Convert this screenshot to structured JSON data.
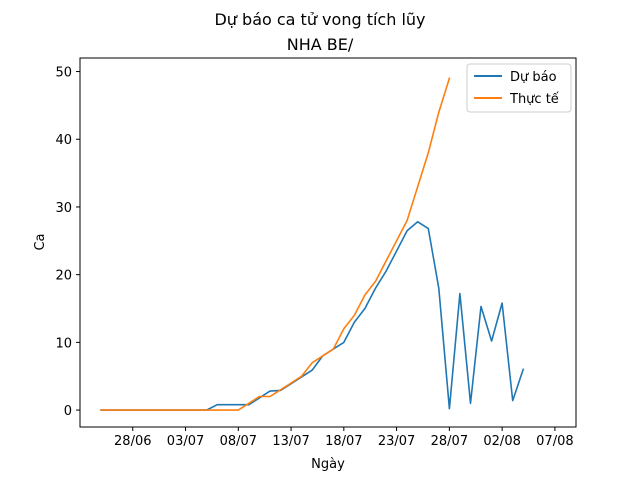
{
  "chart_data": {
    "type": "line",
    "title": "Dự báo ca tử vong tích lũy",
    "subtitle": "NHA BE/",
    "xlabel": "Ngày",
    "ylabel": "Ca",
    "x_axis": {
      "type": "date",
      "year": 2021,
      "range": [
        "2021-06-23",
        "2021-08-09"
      ],
      "ticks": [
        {
          "date": "2021-06-28",
          "label": "28/06"
        },
        {
          "date": "2021-07-03",
          "label": "03/07"
        },
        {
          "date": "2021-07-08",
          "label": "08/07"
        },
        {
          "date": "2021-07-13",
          "label": "13/07"
        },
        {
          "date": "2021-07-18",
          "label": "18/07"
        },
        {
          "date": "2021-07-23",
          "label": "23/07"
        },
        {
          "date": "2021-07-28",
          "label": "28/07"
        },
        {
          "date": "2021-08-02",
          "label": "02/08"
        },
        {
          "date": "2021-08-07",
          "label": "07/08"
        }
      ]
    },
    "y_axis": {
      "range": [
        -2.5,
        52
      ],
      "ticks": [
        0,
        10,
        20,
        30,
        40,
        50
      ]
    },
    "grid": false,
    "legend": {
      "placement": "top-right"
    },
    "series": [
      {
        "name": "Dự báo",
        "color": "#1f77b4",
        "points": [
          [
            "2021-06-25",
            0
          ],
          [
            "2021-06-26",
            0
          ],
          [
            "2021-06-27",
            0
          ],
          [
            "2021-06-28",
            0
          ],
          [
            "2021-06-29",
            0
          ],
          [
            "2021-06-30",
            0
          ],
          [
            "2021-07-01",
            0
          ],
          [
            "2021-07-02",
            0
          ],
          [
            "2021-07-03",
            0
          ],
          [
            "2021-07-04",
            0
          ],
          [
            "2021-07-05",
            0
          ],
          [
            "2021-07-06",
            0.8
          ],
          [
            "2021-07-07",
            0.8
          ],
          [
            "2021-07-08",
            0.8
          ],
          [
            "2021-07-09",
            0.8
          ],
          [
            "2021-07-10",
            1.8
          ],
          [
            "2021-07-11",
            2.8
          ],
          [
            "2021-07-12",
            2.9
          ],
          [
            "2021-07-13",
            3.9
          ],
          [
            "2021-07-14",
            4.9
          ],
          [
            "2021-07-15",
            5.9
          ],
          [
            "2021-07-16",
            8.0
          ],
          [
            "2021-07-17",
            9.0
          ],
          [
            "2021-07-18",
            10.0
          ],
          [
            "2021-07-19",
            13.0
          ],
          [
            "2021-07-20",
            15.0
          ],
          [
            "2021-07-21",
            18.0
          ],
          [
            "2021-07-22",
            20.5
          ],
          [
            "2021-07-23",
            23.5
          ],
          [
            "2021-07-24",
            26.5
          ],
          [
            "2021-07-25",
            27.8
          ],
          [
            "2021-07-26",
            26.8
          ],
          [
            "2021-07-27",
            18.0
          ],
          [
            "2021-07-28",
            0.2
          ],
          [
            "2021-07-29",
            17.2
          ],
          [
            "2021-07-30",
            1.0
          ],
          [
            "2021-07-31",
            15.3
          ],
          [
            "2021-08-01",
            10.2
          ],
          [
            "2021-08-02",
            15.8
          ],
          [
            "2021-08-03",
            1.4
          ],
          [
            "2021-08-04",
            6.0
          ]
        ]
      },
      {
        "name": "Thực tế",
        "color": "#ff7f0e",
        "points": [
          [
            "2021-06-25",
            0
          ],
          [
            "2021-06-26",
            0
          ],
          [
            "2021-06-27",
            0
          ],
          [
            "2021-06-28",
            0
          ],
          [
            "2021-06-29",
            0
          ],
          [
            "2021-06-30",
            0
          ],
          [
            "2021-07-01",
            0
          ],
          [
            "2021-07-02",
            0
          ],
          [
            "2021-07-03",
            0
          ],
          [
            "2021-07-04",
            0
          ],
          [
            "2021-07-05",
            0
          ],
          [
            "2021-07-06",
            0
          ],
          [
            "2021-07-07",
            0
          ],
          [
            "2021-07-08",
            0
          ],
          [
            "2021-07-09",
            1.0
          ],
          [
            "2021-07-10",
            2.0
          ],
          [
            "2021-07-11",
            2.0
          ],
          [
            "2021-07-12",
            3.0
          ],
          [
            "2021-07-13",
            4.0
          ],
          [
            "2021-07-14",
            5.0
          ],
          [
            "2021-07-15",
            7.0
          ],
          [
            "2021-07-16",
            8.0
          ],
          [
            "2021-07-17",
            9.0
          ],
          [
            "2021-07-18",
            12.0
          ],
          [
            "2021-07-19",
            14.0
          ],
          [
            "2021-07-20",
            17.0
          ],
          [
            "2021-07-21",
            19.0
          ],
          [
            "2021-07-22",
            22.0
          ],
          [
            "2021-07-23",
            25.0
          ],
          [
            "2021-07-24",
            28.0
          ],
          [
            "2021-07-25",
            33.0
          ],
          [
            "2021-07-26",
            38.0
          ],
          [
            "2021-07-27",
            44.0
          ],
          [
            "2021-07-28",
            49.0
          ]
        ]
      }
    ]
  }
}
